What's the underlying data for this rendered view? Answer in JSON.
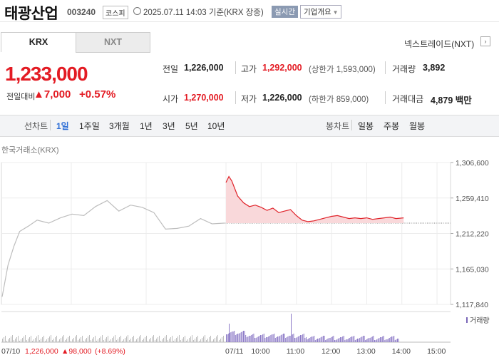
{
  "header": {
    "company_name": "태광산업",
    "stock_code": "003240",
    "market_badge": "코스피",
    "clock_icon": "clock-icon",
    "datetime": "2025.07.11 14:03 기준(KRX 장중)",
    "realtime_badge": "실시간",
    "company_info_button": "기업개요"
  },
  "market_tabs": [
    {
      "label": "KRX",
      "selected": true
    },
    {
      "label": "NXT",
      "selected": false
    }
  ],
  "nxt_link": "넥스트레이드(NXT)",
  "price": {
    "current": "1,233,000",
    "change_label": "전일대비",
    "change_value": "▲7,000",
    "change_pct": "+0.57%"
  },
  "stats": {
    "prev_close_label": "전일",
    "prev_close": "1,226,000",
    "high_label": "고가",
    "high": "1,292,000",
    "upper_limit": "(상한가 1,593,000)",
    "volume_label": "거래량",
    "volume": "3,892",
    "open_label": "시가",
    "open": "1,270,000",
    "low_label": "저가",
    "low": "1,226,000",
    "lower_limit": "(하한가 859,000)",
    "value_label": "거래대금",
    "value": "4,879 백만"
  },
  "chart_tabs": {
    "line_label": "선차트",
    "periods": [
      "1일",
      "1주일",
      "3개월",
      "1년",
      "3년",
      "5년",
      "10년"
    ],
    "selected_period": "1일",
    "candle_label": "봉차트",
    "candle_periods": [
      "일봉",
      "주봉",
      "월봉"
    ]
  },
  "chart_data": {
    "type": "line",
    "title": "한국거래소(KRX)",
    "ylim": [
      1117840,
      1306600
    ],
    "y_ticks": [
      "1,306,600",
      "1,259,410",
      "1,212,220",
      "1,165,030",
      "1,117,840"
    ],
    "y_tick_values": [
      1306600,
      1259410,
      1212220,
      1165030,
      1117840
    ],
    "x_ticks": [
      "07/10",
      "07/11",
      "10:00",
      "11:00",
      "12:00",
      "13:00",
      "14:00",
      "15:00"
    ],
    "prev_day_series": {
      "name": "07/10",
      "x": [
        "09:00",
        "09:10",
        "09:20",
        "09:30",
        "09:45",
        "10:00",
        "10:20",
        "10:40",
        "11:00",
        "11:20",
        "11:40",
        "12:00",
        "12:20",
        "12:40",
        "13:00",
        "13:20",
        "13:40",
        "14:00",
        "14:20",
        "14:40",
        "15:00",
        "15:20"
      ],
      "values": [
        1128000,
        1170000,
        1195000,
        1215000,
        1222000,
        1230000,
        1226000,
        1233000,
        1238000,
        1236000,
        1248000,
        1256000,
        1242000,
        1250000,
        1247000,
        1240000,
        1218000,
        1219000,
        1222000,
        1232000,
        1225000,
        1226000
      ]
    },
    "today_series": {
      "name": "07/11",
      "x": [
        "09:00",
        "09:05",
        "09:10",
        "09:15",
        "09:20",
        "09:30",
        "09:40",
        "09:50",
        "10:00",
        "10:10",
        "10:20",
        "10:30",
        "10:40",
        "10:50",
        "11:00",
        "11:10",
        "11:20",
        "11:30",
        "11:40",
        "11:50",
        "12:00",
        "12:10",
        "12:20",
        "12:30",
        "12:40",
        "12:50",
        "13:00",
        "13:10",
        "13:20",
        "13:30",
        "13:40",
        "13:50",
        "14:03"
      ],
      "values": [
        1280000,
        1288000,
        1282000,
        1272000,
        1262000,
        1253000,
        1248000,
        1250000,
        1247000,
        1243000,
        1246000,
        1240000,
        1242000,
        1244000,
        1236000,
        1230000,
        1228000,
        1229000,
        1231000,
        1233000,
        1235000,
        1236000,
        1234000,
        1232000,
        1233000,
        1232000,
        1233000,
        1231000,
        1232000,
        1233000,
        1234000,
        1232000,
        1233000
      ]
    },
    "prev_close_line": 1226000,
    "volume_label": "거래량",
    "bottom_info": {
      "prev_close": "1,226,000",
      "change": "▲98,000",
      "change_pct": "(+8.69%)"
    }
  }
}
